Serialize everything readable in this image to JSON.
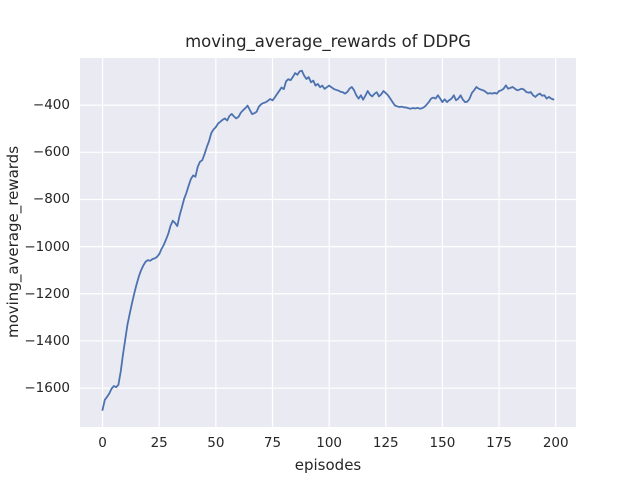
{
  "colors": {
    "figure_background": "#ffffff",
    "axes_background": "#eaeaf2",
    "grid": "#ffffff",
    "line": "#4c72b0",
    "text": "#262626"
  },
  "chart_data": {
    "type": "line",
    "title": "moving_average_rewards of DDPG",
    "xlabel": "episodes",
    "ylabel": "moving_average_rewards",
    "xlim": [
      -9.95,
      208.95
    ],
    "ylim": [
      -1765,
      -200
    ],
    "xticks": [
      0,
      25,
      50,
      75,
      100,
      125,
      150,
      175,
      200
    ],
    "yticks": [
      -400,
      -600,
      -800,
      -1000,
      -1200,
      -1400,
      -1600
    ],
    "grid": true,
    "legend": false,
    "line_color": "#4c72b0",
    "series": [
      {
        "name": "moving_average_rewards",
        "x_start": 0,
        "x_step": 1,
        "values": [
          -1693,
          -1650,
          -1637,
          -1623,
          -1602,
          -1591,
          -1596,
          -1586,
          -1530,
          -1460,
          -1395,
          -1330,
          -1285,
          -1240,
          -1198,
          -1161,
          -1127,
          -1100,
          -1080,
          -1064,
          -1057,
          -1060,
          -1053,
          -1050,
          -1044,
          -1032,
          -1010,
          -993,
          -970,
          -945,
          -912,
          -890,
          -900,
          -913,
          -868,
          -833,
          -798,
          -772,
          -742,
          -713,
          -698,
          -704,
          -662,
          -640,
          -634,
          -608,
          -578,
          -553,
          -518,
          -503,
          -493,
          -478,
          -470,
          -462,
          -456,
          -465,
          -446,
          -437,
          -448,
          -456,
          -450,
          -432,
          -422,
          -413,
          -402,
          -420,
          -438,
          -434,
          -428,
          -406,
          -396,
          -391,
          -388,
          -381,
          -374,
          -380,
          -367,
          -353,
          -339,
          -325,
          -332,
          -299,
          -290,
          -294,
          -280,
          -264,
          -271,
          -257,
          -254,
          -275,
          -289,
          -281,
          -303,
          -296,
          -317,
          -310,
          -324,
          -317,
          -331,
          -324,
          -317,
          -324,
          -331,
          -335,
          -338,
          -343,
          -345,
          -351,
          -344,
          -330,
          -323,
          -337,
          -358,
          -372,
          -358,
          -377,
          -360,
          -340,
          -355,
          -363,
          -352,
          -345,
          -363,
          -354,
          -340,
          -349,
          -358,
          -372,
          -387,
          -401,
          -405,
          -408,
          -406,
          -409,
          -410,
          -413,
          -415,
          -412,
          -414,
          -411,
          -415,
          -413,
          -408,
          -398,
          -387,
          -372,
          -368,
          -372,
          -358,
          -372,
          -387,
          -375,
          -387,
          -379,
          -372,
          -358,
          -379,
          -372,
          -358,
          -376,
          -387,
          -385,
          -372,
          -348,
          -337,
          -323,
          -330,
          -334,
          -337,
          -343,
          -351,
          -349,
          -351,
          -348,
          -351,
          -340,
          -337,
          -330,
          -316,
          -330,
          -327,
          -323,
          -330,
          -337,
          -334,
          -330,
          -334,
          -344,
          -347,
          -344,
          -358,
          -365,
          -356,
          -351,
          -360,
          -358,
          -372,
          -365,
          -372,
          -376
        ]
      }
    ]
  }
}
